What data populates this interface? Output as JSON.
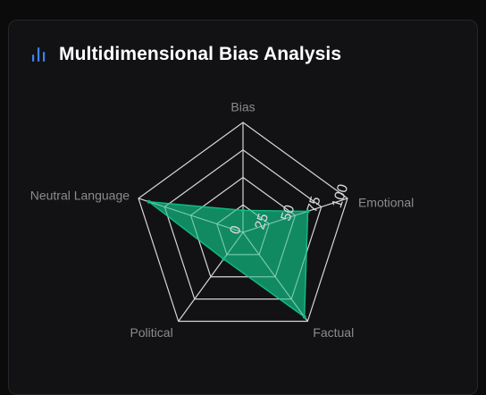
{
  "card": {
    "title": "Multidimensional Bias Analysis",
    "icon": "bar-chart-icon",
    "accent": "#3b82f6"
  },
  "chart_data": {
    "type": "radar",
    "axes": [
      "Bias",
      "Emotional",
      "Factual",
      "Political",
      "Neutral Language"
    ],
    "values": [
      20,
      62,
      95,
      30,
      90
    ],
    "range": [
      0,
      100
    ],
    "ticks": [
      "0",
      "25",
      "50",
      "75",
      "100"
    ],
    "fill_color": "#10b981",
    "grid_color": "#d4d4d8",
    "grid": true,
    "legend": "none"
  }
}
